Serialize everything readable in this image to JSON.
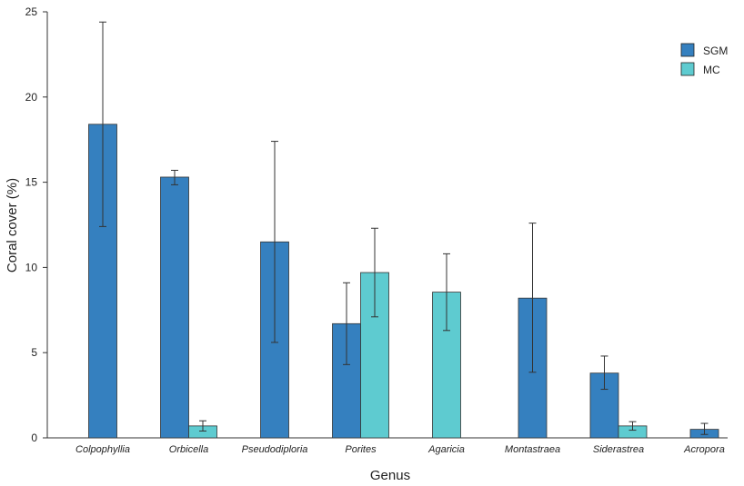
{
  "chart_data": {
    "type": "bar",
    "title": "",
    "xlabel": "Genus",
    "ylabel": "Coral cover (%)",
    "ylim": [
      0,
      25
    ],
    "yticks": [
      0,
      5,
      10,
      15,
      20,
      25
    ],
    "grid": false,
    "legend_position": "top-right",
    "categories": [
      "Colpophyllia",
      "Orbicella",
      "Pseudodiploria",
      "Porites",
      "Agaricia",
      "Montastraea",
      "Siderastrea",
      "Acropora"
    ],
    "series": [
      {
        "name": "SGM",
        "color": "#3580bf",
        "values": [
          18.4,
          15.3,
          11.5,
          6.7,
          null,
          8.2,
          3.8,
          0.5
        ],
        "error_low": [
          12.4,
          14.85,
          5.6,
          4.3,
          null,
          3.85,
          2.85,
          0.2
        ],
        "error_high": [
          24.4,
          15.7,
          17.4,
          9.1,
          null,
          12.6,
          4.8,
          0.85
        ]
      },
      {
        "name": "MC",
        "color": "#5ecbd0",
        "values": [
          null,
          0.7,
          null,
          9.7,
          8.55,
          null,
          0.7,
          null
        ],
        "error_low": [
          null,
          0.4,
          null,
          7.1,
          6.3,
          null,
          0.45,
          null
        ],
        "error_high": [
          null,
          1.0,
          null,
          12.3,
          10.8,
          null,
          0.95,
          null
        ]
      }
    ]
  }
}
